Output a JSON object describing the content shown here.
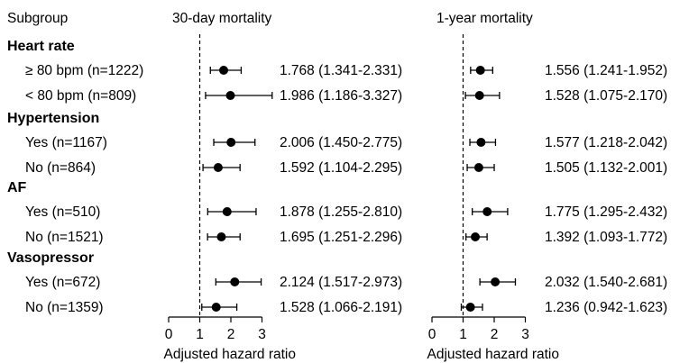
{
  "header": {
    "subgroup": "Subgroup",
    "panel1": "30-day mortality",
    "panel2": "1-year mortality"
  },
  "chart_data": {
    "type": "forest",
    "xlabel": "Adjusted hazard ratio",
    "xlim": [
      0,
      3
    ],
    "xticks": [
      "0",
      "1",
      "2",
      "3"
    ],
    "reference_line": 1,
    "groups": [
      {
        "name": "Heart rate",
        "rows": [
          {
            "label": "≥ 80 bpm (n=1222)",
            "m30": {
              "hr": 1.768,
              "lo": 1.341,
              "hi": 2.331,
              "text": "1.768 (1.341-2.331)"
            },
            "m1y": {
              "hr": 1.556,
              "lo": 1.241,
              "hi": 1.952,
              "text": "1.556 (1.241-1.952)"
            }
          },
          {
            "label": "< 80 bpm (n=809)",
            "m30": {
              "hr": 1.986,
              "lo": 1.186,
              "hi": 3.327,
              "text": "1.986 (1.186-3.327)"
            },
            "m1y": {
              "hr": 1.528,
              "lo": 1.075,
              "hi": 2.17,
              "text": "1.528 (1.075-2.170)"
            }
          }
        ]
      },
      {
        "name": "Hypertension",
        "rows": [
          {
            "label": "Yes (n=1167)",
            "m30": {
              "hr": 2.006,
              "lo": 1.45,
              "hi": 2.775,
              "text": "2.006 (1.450-2.775)"
            },
            "m1y": {
              "hr": 1.577,
              "lo": 1.218,
              "hi": 2.042,
              "text": "1.577 (1.218-2.042)"
            }
          },
          {
            "label": "No (n=864)",
            "m30": {
              "hr": 1.592,
              "lo": 1.104,
              "hi": 2.295,
              "text": "1.592 (1.104-2.295)"
            },
            "m1y": {
              "hr": 1.505,
              "lo": 1.132,
              "hi": 2.001,
              "text": "1.505 (1.132-2.001)"
            }
          }
        ]
      },
      {
        "name": "AF",
        "rows": [
          {
            "label": "Yes (n=510)",
            "m30": {
              "hr": 1.878,
              "lo": 1.255,
              "hi": 2.81,
              "text": "1.878 (1.255-2.810)"
            },
            "m1y": {
              "hr": 1.775,
              "lo": 1.295,
              "hi": 2.432,
              "text": "1.775 (1.295-2.432)"
            }
          },
          {
            "label": "No (n=1521)",
            "m30": {
              "hr": 1.695,
              "lo": 1.251,
              "hi": 2.296,
              "text": "1.695 (1.251-2.296)"
            },
            "m1y": {
              "hr": 1.392,
              "lo": 1.093,
              "hi": 1.772,
              "text": "1.392 (1.093-1.772)"
            }
          }
        ]
      },
      {
        "name": "Vasopressor",
        "rows": [
          {
            "label": "Yes (n=672)",
            "m30": {
              "hr": 2.124,
              "lo": 1.517,
              "hi": 2.973,
              "text": "2.124 (1.517-2.973)"
            },
            "m1y": {
              "hr": 2.032,
              "lo": 1.54,
              "hi": 2.681,
              "text": "2.032 (1.540-2.681)"
            }
          },
          {
            "label": "No (n=1359)",
            "m30": {
              "hr": 1.528,
              "lo": 1.066,
              "hi": 2.191,
              "text": "1.528 (1.066-2.191)"
            },
            "m1y": {
              "hr": 1.236,
              "lo": 0.942,
              "hi": 1.623,
              "text": "1.236 (0.942-1.623)"
            }
          }
        ]
      }
    ]
  }
}
